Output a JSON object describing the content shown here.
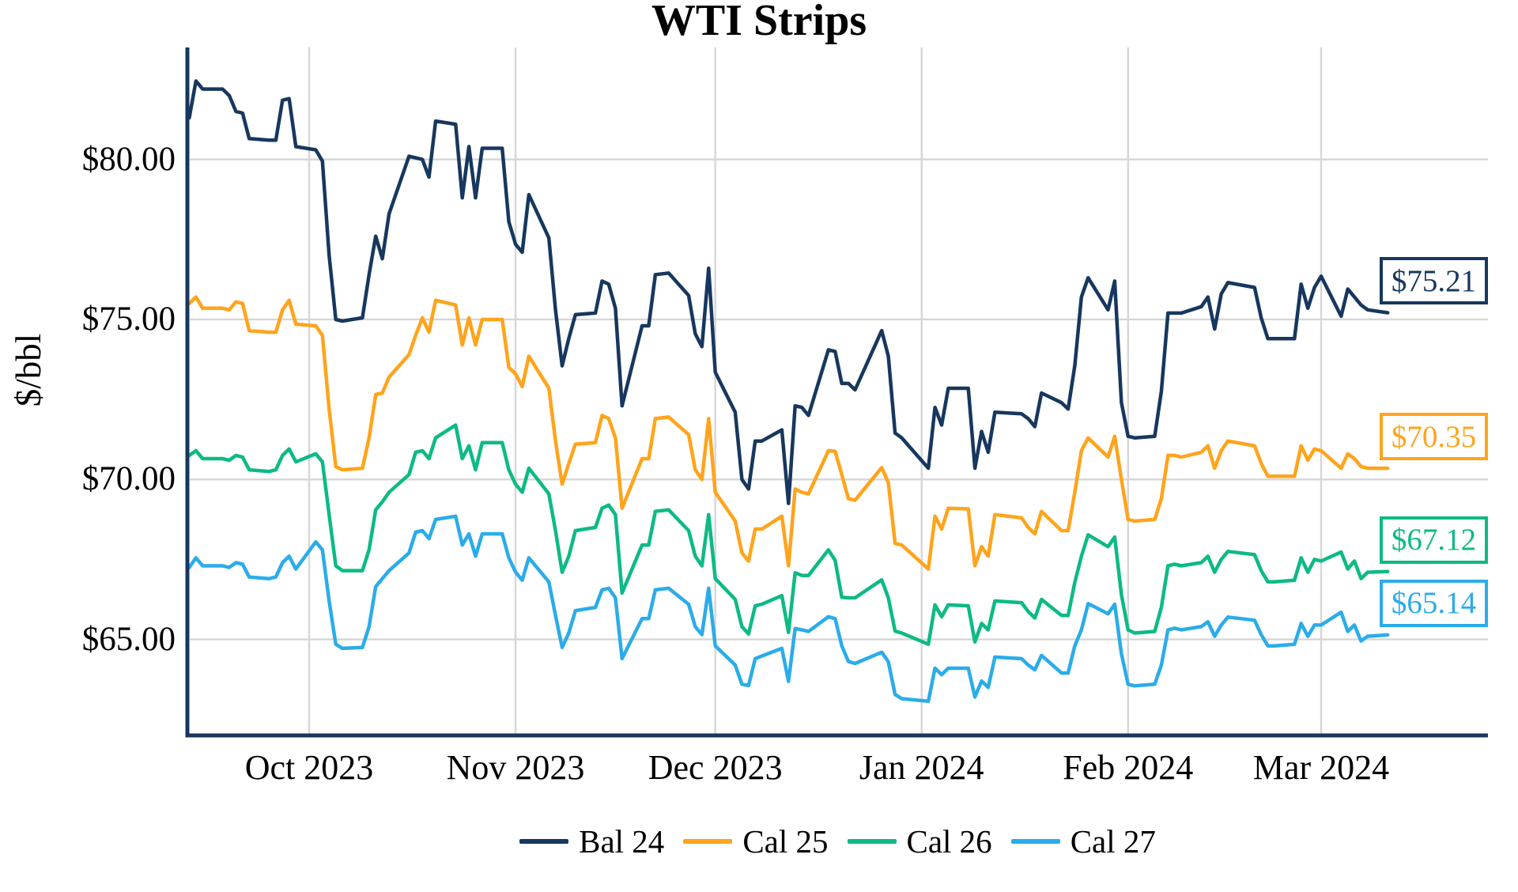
{
  "header": {
    "title": "WTI Strips"
  },
  "chart_data": {
    "type": "line",
    "title": "WTI Strips",
    "xlabel": "",
    "ylabel": "$/bbl",
    "ylim": [
      62,
      83.5
    ],
    "grid": true,
    "legend_position": "bottom",
    "gridline_color": "#d6d6d6",
    "axis_color": "#17375e",
    "y_ticks": [
      {
        "value": 65,
        "label": "$65.00"
      },
      {
        "value": 70,
        "label": "$70.00"
      },
      {
        "value": 75,
        "label": "$75.00"
      },
      {
        "value": 80,
        "label": "$80.00"
      }
    ],
    "x_ticks": [
      {
        "date": "2023-10-01",
        "label": "Oct 2023"
      },
      {
        "date": "2023-11-01",
        "label": "Nov 2023"
      },
      {
        "date": "2023-12-01",
        "label": "Dec 2023"
      },
      {
        "date": "2024-01-01",
        "label": "Jan 2024"
      },
      {
        "date": "2024-02-01",
        "label": "Feb 2024"
      },
      {
        "date": "2024-03-01",
        "label": "Mar 2024"
      }
    ],
    "dates": [
      "2023-09-13",
      "2023-09-14",
      "2023-09-15",
      "2023-09-18",
      "2023-09-19",
      "2023-09-20",
      "2023-09-21",
      "2023-09-22",
      "2023-09-25",
      "2023-09-26",
      "2023-09-27",
      "2023-09-28",
      "2023-09-29",
      "2023-10-02",
      "2023-10-03",
      "2023-10-04",
      "2023-10-05",
      "2023-10-06",
      "2023-10-09",
      "2023-10-10",
      "2023-10-11",
      "2023-10-12",
      "2023-10-13",
      "2023-10-16",
      "2023-10-17",
      "2023-10-18",
      "2023-10-19",
      "2023-10-20",
      "2023-10-23",
      "2023-10-24",
      "2023-10-25",
      "2023-10-26",
      "2023-10-27",
      "2023-10-30",
      "2023-10-31",
      "2023-11-01",
      "2023-11-02",
      "2023-11-03",
      "2023-11-06",
      "2023-11-07",
      "2023-11-08",
      "2023-11-09",
      "2023-11-10",
      "2023-11-13",
      "2023-11-14",
      "2023-11-15",
      "2023-11-16",
      "2023-11-17",
      "2023-11-20",
      "2023-11-21",
      "2023-11-22",
      "2023-11-24",
      "2023-11-27",
      "2023-11-28",
      "2023-11-29",
      "2023-11-30",
      "2023-12-01",
      "2023-12-04",
      "2023-12-05",
      "2023-12-06",
      "2023-12-07",
      "2023-12-08",
      "2023-12-11",
      "2023-12-12",
      "2023-12-13",
      "2023-12-14",
      "2023-12-15",
      "2023-12-18",
      "2023-12-19",
      "2023-12-20",
      "2023-12-21",
      "2023-12-22",
      "2023-12-26",
      "2023-12-27",
      "2023-12-28",
      "2023-12-29",
      "2024-01-02",
      "2024-01-03",
      "2024-01-04",
      "2024-01-05",
      "2024-01-08",
      "2024-01-09",
      "2024-01-10",
      "2024-01-11",
      "2024-01-12",
      "2024-01-16",
      "2024-01-17",
      "2024-01-18",
      "2024-01-19",
      "2024-01-22",
      "2024-01-23",
      "2024-01-24",
      "2024-01-25",
      "2024-01-26",
      "2024-01-29",
      "2024-01-30",
      "2024-01-31",
      "2024-02-01",
      "2024-02-02",
      "2024-02-05",
      "2024-02-06",
      "2024-02-07",
      "2024-02-08",
      "2024-02-09",
      "2024-02-12",
      "2024-02-13",
      "2024-02-14",
      "2024-02-15",
      "2024-02-16",
      "2024-02-20",
      "2024-02-21",
      "2024-02-22",
      "2024-02-23",
      "2024-02-26",
      "2024-02-27",
      "2024-02-28",
      "2024-02-29",
      "2024-03-01",
      "2024-03-04",
      "2024-03-05",
      "2024-03-06",
      "2024-03-07",
      "2024-03-08",
      "2024-03-11"
    ],
    "series": [
      {
        "name": "Bal 24",
        "color": "#17375e",
        "end_label": "$75.21",
        "values": [
          81.3,
          82.45,
          82.2,
          82.2,
          82.0,
          81.5,
          81.45,
          80.65,
          80.6,
          80.6,
          81.85,
          81.9,
          80.4,
          80.3,
          79.95,
          77.0,
          75.0,
          74.95,
          75.05,
          76.4,
          77.6,
          76.9,
          78.3,
          80.1,
          80.05,
          80.0,
          79.45,
          81.2,
          81.1,
          78.8,
          80.4,
          78.8,
          80.35,
          80.35,
          78.05,
          77.35,
          77.1,
          78.9,
          77.55,
          75.3,
          73.55,
          74.4,
          75.15,
          75.2,
          76.2,
          76.1,
          75.35,
          72.3,
          74.8,
          74.8,
          76.4,
          76.45,
          75.75,
          74.55,
          74.15,
          76.6,
          73.35,
          72.1,
          70.0,
          69.7,
          71.2,
          71.2,
          71.55,
          69.25,
          72.3,
          72.25,
          72.0,
          74.05,
          74.0,
          73.0,
          73.0,
          72.8,
          74.65,
          73.85,
          71.45,
          71.3,
          70.35,
          72.25,
          71.7,
          72.85,
          72.85,
          70.35,
          71.5,
          70.85,
          72.1,
          72.05,
          71.9,
          71.65,
          72.7,
          72.4,
          72.2,
          73.55,
          75.7,
          76.3,
          75.3,
          76.2,
          72.4,
          71.35,
          71.3,
          71.35,
          72.75,
          75.2,
          75.2,
          75.2,
          75.4,
          75.7,
          74.7,
          75.8,
          76.15,
          76.0,
          75.05,
          74.4,
          74.4,
          74.4,
          76.1,
          75.35,
          76.0,
          76.35,
          75.1,
          75.95,
          75.7,
          75.45,
          75.3,
          75.21
        ]
      },
      {
        "name": "Cal 25",
        "color": "#ffa41c",
        "end_label": "$70.35",
        "values": [
          75.5,
          75.7,
          75.35,
          75.35,
          75.3,
          75.55,
          75.5,
          74.65,
          74.6,
          74.6,
          75.3,
          75.6,
          74.85,
          74.8,
          74.5,
          72.2,
          70.4,
          70.3,
          70.35,
          71.3,
          72.65,
          72.7,
          73.2,
          73.9,
          74.5,
          75.05,
          74.6,
          75.6,
          75.45,
          74.2,
          75.05,
          74.2,
          75.0,
          75.0,
          73.5,
          73.3,
          72.9,
          73.85,
          72.85,
          71.2,
          69.85,
          70.5,
          71.1,
          71.15,
          72.0,
          71.9,
          71.3,
          69.1,
          70.65,
          70.65,
          71.9,
          71.95,
          71.4,
          70.3,
          70.0,
          71.9,
          69.6,
          68.7,
          67.7,
          67.45,
          68.45,
          68.45,
          68.85,
          67.3,
          69.7,
          69.6,
          69.55,
          70.9,
          70.88,
          70.15,
          69.4,
          69.35,
          70.37,
          69.9,
          68.0,
          67.95,
          67.2,
          68.85,
          68.45,
          69.1,
          69.08,
          67.3,
          67.9,
          67.6,
          68.9,
          68.8,
          68.5,
          68.3,
          69.0,
          68.4,
          68.4,
          69.6,
          70.9,
          71.3,
          70.7,
          71.35,
          70.0,
          68.75,
          68.7,
          68.75,
          69.4,
          70.75,
          70.75,
          70.7,
          70.85,
          71.05,
          70.35,
          70.9,
          71.2,
          71.05,
          70.5,
          70.1,
          70.1,
          70.1,
          71.05,
          70.6,
          70.95,
          70.9,
          70.35,
          70.8,
          70.65,
          70.4,
          70.35,
          70.35
        ]
      },
      {
        "name": "Cal 26",
        "color": "#0dba86",
        "end_label": "$67.12",
        "values": [
          70.75,
          70.9,
          70.65,
          70.65,
          70.6,
          70.75,
          70.7,
          70.3,
          70.25,
          70.3,
          70.75,
          70.95,
          70.55,
          70.8,
          70.55,
          68.9,
          67.3,
          67.15,
          67.15,
          67.8,
          69.05,
          69.3,
          69.6,
          70.15,
          70.85,
          70.9,
          70.65,
          71.3,
          71.7,
          70.65,
          71.05,
          70.3,
          71.15,
          71.15,
          70.3,
          69.85,
          69.6,
          70.35,
          69.55,
          68.4,
          67.1,
          67.6,
          68.4,
          68.5,
          69.1,
          69.2,
          68.9,
          66.45,
          67.95,
          67.95,
          69.0,
          69.05,
          68.4,
          67.6,
          67.3,
          68.9,
          66.9,
          66.25,
          65.4,
          65.17,
          66.05,
          66.1,
          66.37,
          65.22,
          67.08,
          67.0,
          67.0,
          67.8,
          67.47,
          66.32,
          66.3,
          66.3,
          66.86,
          66.3,
          65.26,
          65.2,
          64.85,
          66.08,
          65.71,
          66.08,
          66.05,
          64.92,
          65.5,
          65.3,
          66.2,
          66.15,
          65.87,
          65.67,
          66.25,
          65.75,
          65.75,
          66.78,
          67.6,
          68.27,
          67.9,
          68.2,
          66.4,
          65.3,
          65.2,
          65.25,
          66.0,
          67.3,
          67.35,
          67.3,
          67.4,
          67.6,
          67.1,
          67.5,
          67.75,
          67.65,
          67.15,
          66.8,
          66.8,
          66.85,
          67.55,
          67.1,
          67.5,
          67.45,
          67.73,
          67.2,
          67.45,
          66.9,
          67.1,
          67.12
        ]
      },
      {
        "name": "Cal 27",
        "color": "#2bace9",
        "end_label": "$65.14",
        "values": [
          67.25,
          67.55,
          67.3,
          67.3,
          67.25,
          67.4,
          67.35,
          66.95,
          66.9,
          66.95,
          67.4,
          67.6,
          67.2,
          68.05,
          67.8,
          66.2,
          64.85,
          64.72,
          64.75,
          65.4,
          66.65,
          66.9,
          67.15,
          67.7,
          68.35,
          68.4,
          68.15,
          68.75,
          68.85,
          67.95,
          68.3,
          67.6,
          68.3,
          68.3,
          67.55,
          67.1,
          66.85,
          67.55,
          66.8,
          65.75,
          64.75,
          65.2,
          65.9,
          66.0,
          66.55,
          66.6,
          66.3,
          64.4,
          65.65,
          65.65,
          66.55,
          66.6,
          66.1,
          65.4,
          65.15,
          66.6,
          64.8,
          64.2,
          63.6,
          63.56,
          64.4,
          64.48,
          64.72,
          63.69,
          65.34,
          65.3,
          65.25,
          65.71,
          65.65,
          64.8,
          64.31,
          64.25,
          64.6,
          64.3,
          63.28,
          63.15,
          63.07,
          64.1,
          63.9,
          64.1,
          64.1,
          63.2,
          63.7,
          63.5,
          64.45,
          64.4,
          64.2,
          64.05,
          64.5,
          63.95,
          63.95,
          64.8,
          65.3,
          66.12,
          65.8,
          66.1,
          64.55,
          63.6,
          63.55,
          63.6,
          64.2,
          65.3,
          65.35,
          65.3,
          65.4,
          65.55,
          65.1,
          65.45,
          65.7,
          65.6,
          65.15,
          64.8,
          64.8,
          64.85,
          65.5,
          65.1,
          65.45,
          65.45,
          65.85,
          65.25,
          65.45,
          64.95,
          65.1,
          65.14
        ]
      }
    ]
  }
}
